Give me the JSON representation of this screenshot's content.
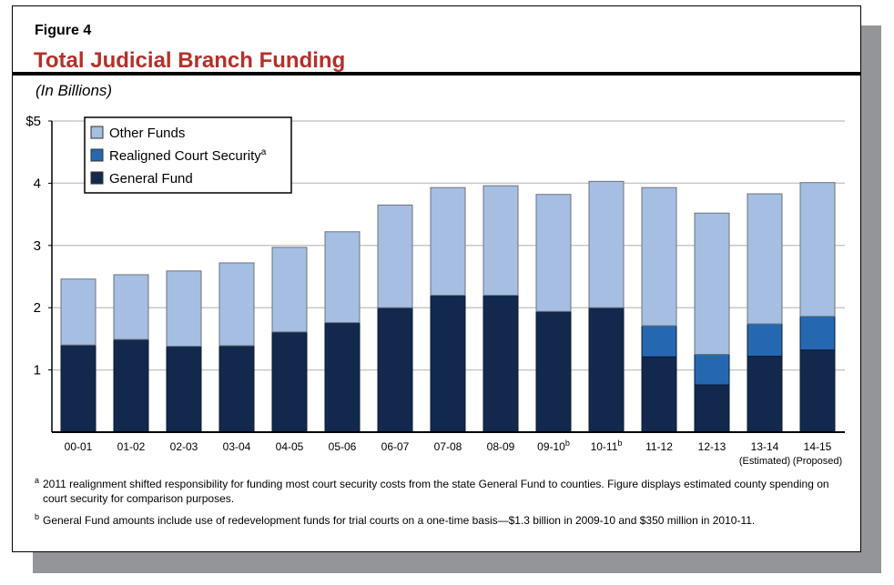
{
  "header": {
    "figure_label": "Figure 4",
    "title": "Total Judicial Branch Funding",
    "units": "(In Billions)"
  },
  "colors": {
    "other_funds": "#a5bee2",
    "realigned_court_security": "#2568b1",
    "general_fund": "#12294d",
    "title": "#b5302a",
    "grid": "#c8c8c8",
    "shadow": "#939598"
  },
  "chart_data": {
    "type": "bar",
    "stacked": true,
    "title": "Total Judicial Branch Funding",
    "ylabel": "(In Billions)",
    "ylim": [
      0,
      5
    ],
    "yticks": [
      {
        "value": 1,
        "label": "1"
      },
      {
        "value": 2,
        "label": "2"
      },
      {
        "value": 3,
        "label": "3"
      },
      {
        "value": 4,
        "label": "4"
      },
      {
        "value": 5,
        "label": "$5"
      }
    ],
    "grid": true,
    "legend_position": "top-left",
    "categories": [
      "00-01",
      "01-02",
      "02-03",
      "03-04",
      "04-05",
      "05-06",
      "06-07",
      "07-08",
      "08-09",
      "09-10",
      "10-11",
      "11-12",
      "12-13",
      "13-14",
      "14-15"
    ],
    "category_footnotes": [
      "",
      "",
      "",
      "",
      "",
      "",
      "",
      "",
      "",
      "b",
      "b",
      "",
      "",
      "",
      ""
    ],
    "category_sublabels": [
      "",
      "",
      "",
      "",
      "",
      "",
      "",
      "",
      "",
      "",
      "",
      "",
      "",
      "(Estimated)",
      "(Proposed)"
    ],
    "series": [
      {
        "name": "General Fund",
        "values": [
          1.4,
          1.49,
          1.38,
          1.39,
          1.61,
          1.76,
          2.0,
          2.2,
          2.2,
          1.94,
          2.0,
          1.21,
          0.76,
          1.22,
          1.32
        ]
      },
      {
        "name": "Realigned Court Security",
        "footnote": "a",
        "values": [
          0,
          0,
          0,
          0,
          0,
          0,
          0,
          0,
          0,
          0,
          0,
          0.5,
          0.49,
          0.52,
          0.54
        ]
      },
      {
        "name": "Other Funds",
        "values": [
          1.06,
          1.04,
          1.21,
          1.33,
          1.36,
          1.46,
          1.65,
          1.73,
          1.76,
          1.88,
          2.03,
          2.22,
          2.27,
          2.09,
          2.15
        ]
      }
    ],
    "legend_order": [
      "Other Funds",
      "Realigned Court Security",
      "General Fund"
    ]
  },
  "footnotes": [
    {
      "marker": "a",
      "text": "2011 realignment shifted responsibility for funding most court security costs from the state General Fund to counties. Figure displays estimated county spending on court security for comparison purposes."
    },
    {
      "marker": "b",
      "text": "General Fund amounts include use of redevelopment funds for trial courts on a one-time basis—$1.3 billion in 2009-10 and $350 million in 2010-11."
    }
  ]
}
